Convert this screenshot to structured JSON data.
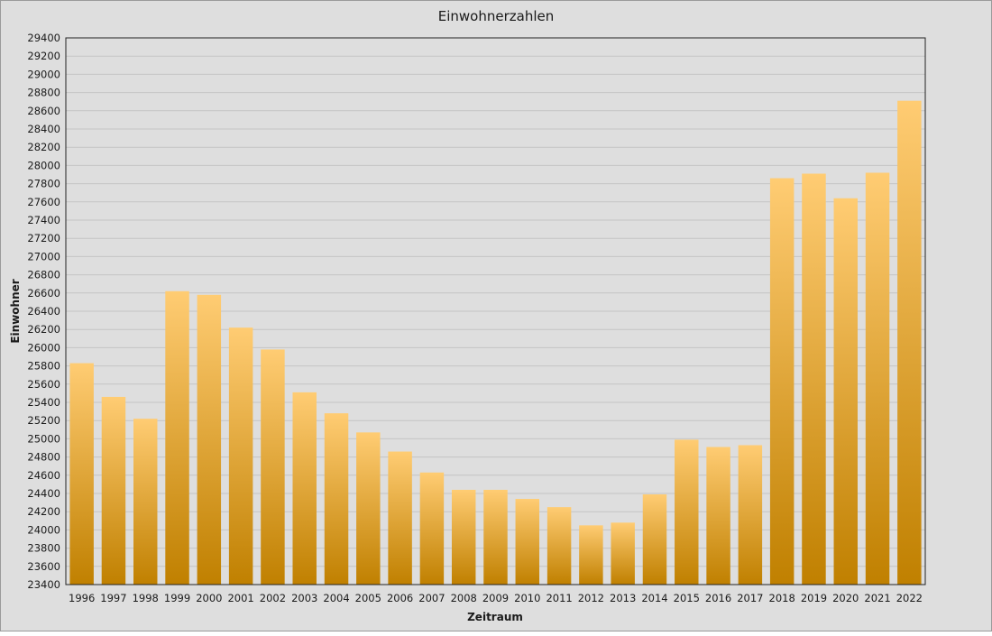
{
  "chart_data": {
    "type": "bar",
    "title": "Einwohnerzahlen",
    "xlabel": "Zeitraum",
    "ylabel": "Einwohner",
    "ylim": [
      23400,
      29400
    ],
    "ytick_step": 200,
    "grid": true,
    "legend": "none",
    "bar_color_top": "#ffcc73",
    "bar_color_bottom": "#c08000",
    "background_color": "#dedede",
    "categories": [
      "1996",
      "1997",
      "1998",
      "1999",
      "2000",
      "2001",
      "2002",
      "2003",
      "2004",
      "2005",
      "2006",
      "2007",
      "2008",
      "2009",
      "2010",
      "2011",
      "2012",
      "2013",
      "2014",
      "2015",
      "2016",
      "2017",
      "2018",
      "2019",
      "2020",
      "2021",
      "2022"
    ],
    "values": [
      25830,
      25460,
      25220,
      26620,
      26580,
      26220,
      25980,
      25510,
      25280,
      25070,
      24860,
      24630,
      24440,
      24440,
      24340,
      24250,
      24050,
      24080,
      24390,
      24990,
      24910,
      24930,
      27860,
      27910,
      27640,
      27920,
      28710
    ]
  }
}
